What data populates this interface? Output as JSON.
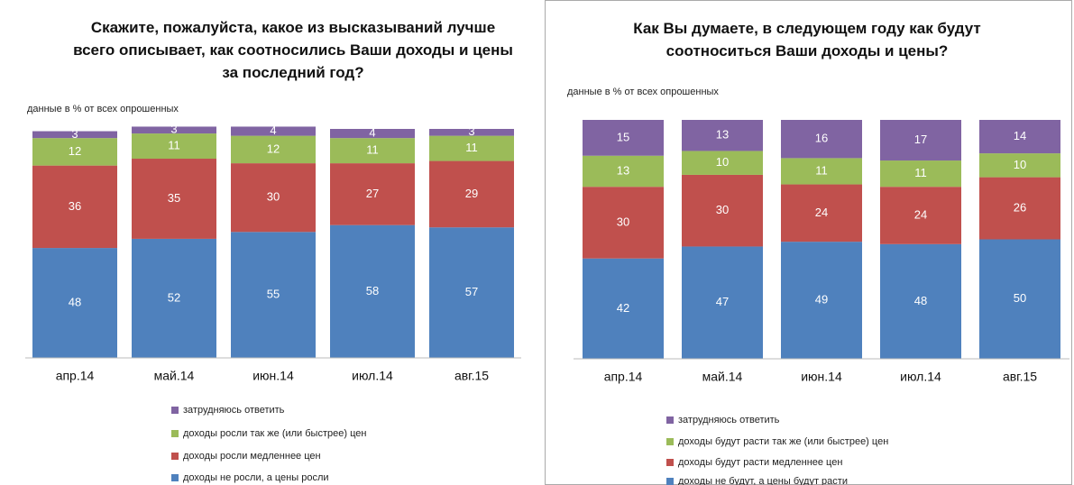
{
  "chart_data": [
    {
      "type": "bar",
      "stacked": true,
      "title": "Скажите, пожалуйста, какое из высказываний лучше всего описывает, как соотносились Ваши доходы и цены за последний год?",
      "subtitle": "данные в % от всех опрошенных",
      "categories": [
        "апр.14",
        "май.14",
        "июн.14",
        "июл.14",
        "авг.15"
      ],
      "ylim": [
        0,
        100
      ],
      "series": [
        {
          "name": "доходы не росли, а цены росли",
          "color": "#4f81bd",
          "values": [
            48,
            52,
            55,
            58,
            57
          ]
        },
        {
          "name": "доходы росли медленнее цен",
          "color": "#c0504d",
          "values": [
            36,
            35,
            30,
            27,
            29
          ]
        },
        {
          "name": "доходы росли так же (или быстрее) цен",
          "color": "#9bbb59",
          "values": [
            12,
            11,
            12,
            11,
            11
          ]
        },
        {
          "name": "затрудняюсь ответить",
          "color": "#8064a2",
          "values": [
            3,
            3,
            4,
            4,
            3
          ]
        }
      ]
    },
    {
      "type": "bar",
      "stacked": true,
      "title": "Как Вы думаете, в следующем году как будут соотноситься Ваши доходы и цены?",
      "subtitle": "данные в % от всех опрошенных",
      "categories": [
        "апр.14",
        "май.14",
        "июн.14",
        "июл.14",
        "авг.15"
      ],
      "ylim": [
        0,
        100
      ],
      "series": [
        {
          "name": "доходы не будут, а цены будут расти",
          "color": "#4f81bd",
          "values": [
            42,
            47,
            49,
            48,
            50
          ]
        },
        {
          "name": "доходы будут расти медленнее цен",
          "color": "#c0504d",
          "values": [
            30,
            30,
            24,
            24,
            26
          ]
        },
        {
          "name": "доходы будут расти так же (или быстрее) цен",
          "color": "#9bbb59",
          "values": [
            13,
            10,
            11,
            11,
            10
          ]
        },
        {
          "name": "затрудняюсь ответить",
          "color": "#8064a2",
          "values": [
            15,
            13,
            16,
            17,
            14
          ]
        }
      ]
    }
  ]
}
